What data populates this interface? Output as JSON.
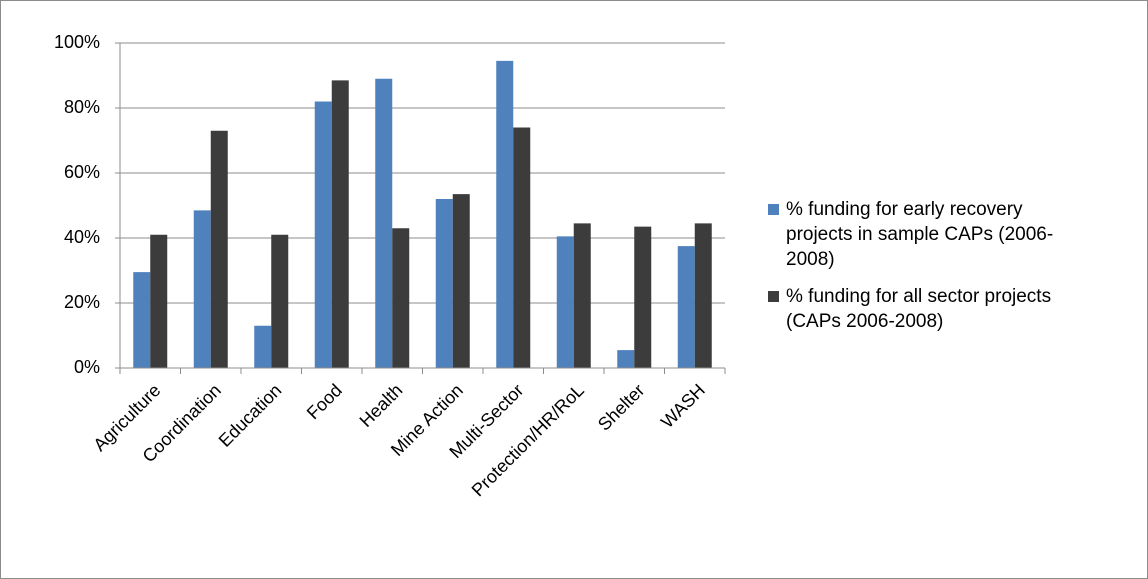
{
  "chart_data": {
    "type": "bar",
    "categories": [
      "Agriculture",
      "Coordination",
      "Education",
      "Food",
      "Health",
      "Mine Action",
      "Multi-Sector",
      "Protection/HR/RoL",
      "Shelter",
      "WASH"
    ],
    "series": [
      {
        "name": "% funding for early recovery projects in sample CAPs (2006-2008)",
        "color": "#4f81bd",
        "values": [
          29.5,
          48.5,
          13,
          82,
          89,
          52,
          94.5,
          40.5,
          5.5,
          37.5
        ]
      },
      {
        "name": "% funding for all sector projects (CAPs 2006-2008)",
        "color": "#3c3c3c",
        "values": [
          41,
          73,
          41,
          88.5,
          43,
          53.5,
          74,
          44.5,
          43.5,
          44.5
        ]
      }
    ],
    "ylim": [
      0,
      100
    ],
    "yticks": [
      {
        "value": 0,
        "label": "0%"
      },
      {
        "value": 20,
        "label": "20%"
      },
      {
        "value": 40,
        "label": "40%"
      },
      {
        "value": 60,
        "label": "60%"
      },
      {
        "value": 80,
        "label": "80%"
      },
      {
        "value": 100,
        "label": "100%"
      }
    ],
    "grid": true,
    "legend": "right"
  }
}
